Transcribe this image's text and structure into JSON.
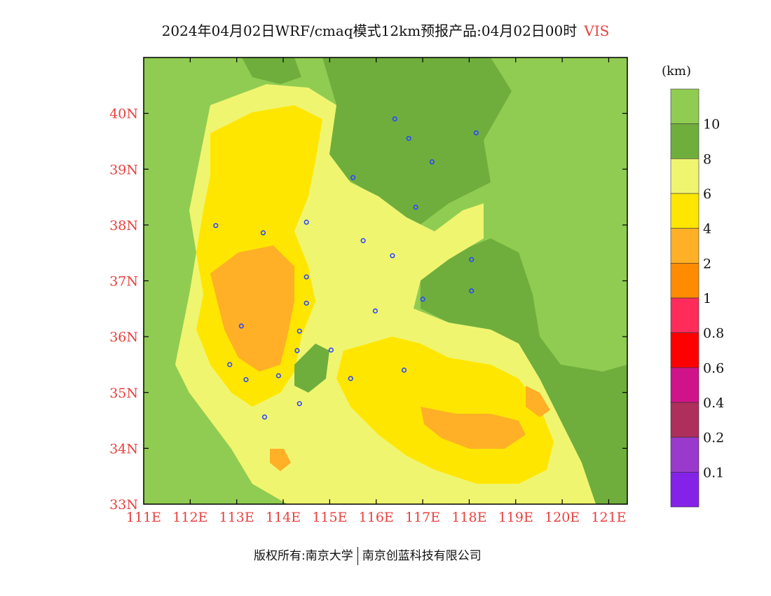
{
  "header": {
    "title": "2024年04月02日WRF/cmaq模式12km预报产品:04月02日00时",
    "variable": "VIS"
  },
  "map": {
    "lat_labels": [
      "40N",
      "39N",
      "38N",
      "37N",
      "36N",
      "35N",
      "34N",
      "33N"
    ],
    "lon_labels": [
      "111E",
      "112E",
      "113E",
      "114E",
      "115E",
      "116E",
      "117E",
      "118E",
      "119E",
      "120E",
      "121E"
    ],
    "lat_values": [
      40,
      39,
      38,
      37,
      36,
      35,
      34,
      33
    ],
    "lon_values": [
      111,
      112,
      113,
      114,
      115,
      116,
      117,
      118,
      119,
      120,
      121
    ],
    "lat_range": [
      33,
      41
    ],
    "lon_range": [
      111,
      121.4
    ],
    "label_color": "#e8413f",
    "stations": [
      [
        116.4,
        39.9
      ],
      [
        116.7,
        39.55
      ],
      [
        118.15,
        39.65
      ],
      [
        117.2,
        39.13
      ],
      [
        115.5,
        38.85
      ],
      [
        116.85,
        38.32
      ],
      [
        112.55,
        37.99
      ],
      [
        113.57,
        37.86
      ],
      [
        114.5,
        38.05
      ],
      [
        115.72,
        37.72
      ],
      [
        116.35,
        37.45
      ],
      [
        118.05,
        37.38
      ],
      [
        118.05,
        36.82
      ],
      [
        117.0,
        36.67
      ],
      [
        114.5,
        37.07
      ],
      [
        114.5,
        36.6
      ],
      [
        115.98,
        36.46
      ],
      [
        113.1,
        36.19
      ],
      [
        114.35,
        36.1
      ],
      [
        114.3,
        35.75
      ],
      [
        115.03,
        35.76
      ],
      [
        112.85,
        35.5
      ],
      [
        113.9,
        35.3
      ],
      [
        113.2,
        35.23
      ],
      [
        115.45,
        35.25
      ],
      [
        116.6,
        35.4
      ],
      [
        114.35,
        34.8
      ],
      [
        113.6,
        34.56
      ]
    ]
  },
  "legend": {
    "unit": "(km)",
    "labels": [
      "10",
      "8",
      "6",
      "4",
      "2",
      "1",
      "0.8",
      "0.6",
      "0.4",
      "0.2",
      "0.1"
    ],
    "colors": [
      "#90cc52",
      "#6fae3c",
      "#f0f570",
      "#ffe600",
      "#ffb026",
      "#ff8c00",
      "#ff2b5a",
      "#ff0000",
      "#d0138b",
      "#ae2e5c",
      "#9a3acd",
      "#8522e8"
    ]
  },
  "footer": {
    "left": "版权所有:南京大学",
    "right": "南京创蓝科技有限公司"
  }
}
